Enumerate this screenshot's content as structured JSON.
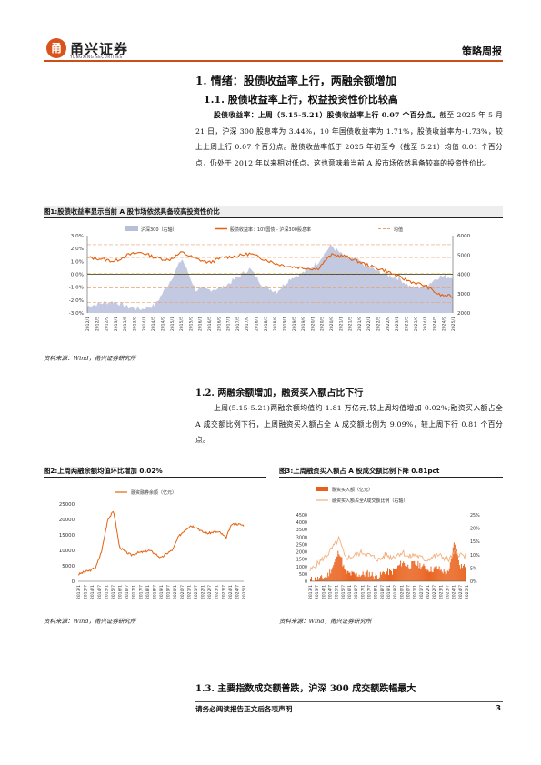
{
  "header": {
    "logo_mark": "甬",
    "logo_text": "甬兴证券",
    "logo_sub": "YONGXING SECURITIES",
    "doc_type": "策略周报"
  },
  "section1": {
    "title": "1. 情绪：股债收益率上行，两融余额增加",
    "sub1_title": "1.1. 股债收益率上行，权益投资性价比较高",
    "para1_bold": "股债收益率：上周（5.15-5.21）股债收益率上行 0.07 个百分点。",
    "para1_text": "截至 2025 年 5 月 21 日，沪深 300 股息率为 3.44%，10 年国债收益率为 1.71%，股债收益率为-1.73%，较上上周上行 0.07 个百分点。股债收益率低于 2025 年初至今（截至 5.21）均值 0.01 个百分点，仍处于 2012 年以来相对低点，这也意味着当前 A 股市场依然具备较高的投资性价比。",
    "sub2_title": "1.2. 两融余额增加，融资买入额占比下行",
    "para2_text": "上周(5.15-5.21)两融余额均值约 1.81 万亿元,较上周均值增加 0.02%;融资买入额占全 A 成交额比例下行，上周融资买入额占全 A 成交额比例为 9.09%，较上周下行 0.81 个百分点。",
    "sub3_title": "1.3. 主要指数成交额普跌，沪深 300 成交额跌幅最大"
  },
  "figure1": {
    "title": "图1:股债收益率显示当前 A 股市场依然具备较高投资性价比",
    "source": "资料来源：Wind，甬兴证券研究所"
  },
  "figure2": {
    "title": "图2:上周两融余额均值环比增加 0.02%",
    "source": "资料来源：Wind，甬兴证券研究所"
  },
  "figure3": {
    "title": "图3:上周融资买入额占 A 股成交额比例下降 0.81pct",
    "source": "资料来源：Wind，甬兴证券研究所"
  },
  "footer": {
    "disclaimer": "请务必阅读报告正文后各项声明",
    "page": "3"
  },
  "chart_data": [
    {
      "type": "line",
      "legend": [
        "沪深300（右轴）",
        "股债收益率：10Y国债 - 沪深300股息率",
        "均值"
      ],
      "yticks_left": [
        "3.0%",
        "2.0%",
        "1.0%",
        "0.0%",
        "-1.0%",
        "-2.0%",
        "-3.0%"
      ],
      "yticks_right": [
        "6000",
        "5000",
        "4000",
        "3000",
        "2000"
      ],
      "ylim_left": [
        -3.0,
        3.0
      ],
      "ylim_right": [
        2000,
        6000
      ],
      "reference_lines": [
        2.3,
        1.3,
        0.05,
        -1.05,
        -2.2
      ],
      "x": [
        "2012/1",
        "2012/7",
        "2013/1",
        "2013/7",
        "2014/1",
        "2014/7",
        "2015/1",
        "2015/7",
        "2016/1",
        "2016/7",
        "2017/1",
        "2017/7",
        "2018/1",
        "2018/7",
        "2019/1",
        "2019/7",
        "2020/1",
        "2020/7",
        "2021/1",
        "2021/7",
        "2022/1",
        "2022/7",
        "2023/1",
        "2023/7",
        "2024/1",
        "2024/7",
        "2025/1",
        "2025/5"
      ],
      "xticks": [
        "2012/1",
        "2012/5",
        "2012/9",
        "2013/1",
        "2013/5",
        "2013/9",
        "2014/1",
        "2014/5",
        "2014/9",
        "2015/1",
        "2015/5",
        "2015/9",
        "2016/1",
        "2016/5",
        "2016/9",
        "2017/1",
        "2017/5",
        "2017/9",
        "2018/1",
        "2018/5",
        "2018/9",
        "2019/1",
        "2019/5",
        "2019/9",
        "2020/1",
        "2020/5",
        "2020/9",
        "2021/1",
        "2021/5",
        "2021/9",
        "2022/1",
        "2022/5",
        "2022/9",
        "2023/1",
        "2023/5",
        "2023/9",
        "2024/1",
        "2024/5",
        "2024/9",
        "2025/1"
      ],
      "series": [
        {
          "name": "沪深300（右轴）",
          "axis": "right",
          "values": [
            2350,
            2500,
            2600,
            2300,
            2200,
            2400,
            3500,
            4800,
            3200,
            3200,
            3300,
            3800,
            4300,
            3400,
            3100,
            3800,
            4100,
            4600,
            5500,
            4900,
            4700,
            4300,
            4000,
            3800,
            3300,
            3400,
            3900,
            3850
          ]
        },
        {
          "name": "股债收益率：10Y国债 - 沪深300股息率",
          "axis": "left",
          "values": [
            1.3,
            1.2,
            1.0,
            1.5,
            1.7,
            1.3,
            1.1,
            1.7,
            1.2,
            0.9,
            1.3,
            1.4,
            1.6,
            1.2,
            0.8,
            0.6,
            0.5,
            0.4,
            1.5,
            1.4,
            1.0,
            0.6,
            0.3,
            -0.2,
            -0.6,
            -0.9,
            -1.6,
            -1.73
          ]
        }
      ]
    },
    {
      "type": "line",
      "legend": [
        "融资融券余额（亿元）"
      ],
      "yticks": [
        "25000",
        "20000",
        "15000",
        "10000",
        "5000",
        "0"
      ],
      "ylim": [
        0,
        25000
      ],
      "xticks": [
        "2013/1",
        "2013/7",
        "2014/1",
        "2014/7",
        "2015/1",
        "2015/7",
        "2016/1",
        "2016/7",
        "2017/1",
        "2017/7",
        "2018/1",
        "2018/7",
        "2019/1",
        "2019/7",
        "2020/1",
        "2020/7",
        "2021/1",
        "2021/7",
        "2022/1",
        "2022/7",
        "2023/1",
        "2023/7",
        "2024/1",
        "2024/7",
        "2025/1"
      ],
      "x": [
        "2013/1",
        "2013/7",
        "2014/1",
        "2014/7",
        "2015/1",
        "2015/5",
        "2015/6",
        "2015/9",
        "2016/1",
        "2016/7",
        "2017/1",
        "2017/7",
        "2018/1",
        "2018/7",
        "2019/1",
        "2019/7",
        "2020/1",
        "2020/7",
        "2021/1",
        "2021/7",
        "2022/1",
        "2022/7",
        "2023/1",
        "2023/7",
        "2024/1",
        "2024/7",
        "2024/10",
        "2025/1",
        "2025/5"
      ],
      "series": [
        {
          "name": "融资融券余额（亿元）",
          "values": [
            2200,
            3000,
            3500,
            4500,
            10000,
            20000,
            22700,
            11000,
            9500,
            8500,
            9200,
            9500,
            10000,
            9000,
            7500,
            9000,
            10200,
            14500,
            16500,
            18000,
            17500,
            16000,
            15500,
            16000,
            15800,
            14000,
            18500,
            18500,
            18100
          ]
        }
      ]
    },
    {
      "type": "bar",
      "legend": [
        "融资买入额（亿元）",
        "融资买入额占全A成交额比例（右轴）"
      ],
      "yticks_left": [
        "4500",
        "4000",
        "3500",
        "3000",
        "2500",
        "2000",
        "1500",
        "1000",
        "500",
        "0"
      ],
      "yticks_right": [
        "25%",
        "20%",
        "15%",
        "10%",
        "5%",
        "0%"
      ],
      "ylim_left": [
        0,
        4500
      ],
      "ylim_right": [
        0,
        25
      ],
      "xticks": [
        "2013/1",
        "2013/7",
        "2014/1",
        "2014/7",
        "2015/1",
        "2015/7",
        "2016/1",
        "2016/7",
        "2017/1",
        "2017/7",
        "2018/1",
        "2018/7",
        "2019/1",
        "2019/7",
        "2020/1",
        "2020/7",
        "2021/1",
        "2021/7",
        "2022/1",
        "2022/7",
        "2023/1",
        "2023/7",
        "2024/1",
        "2024/7",
        "2025/1"
      ],
      "x": [
        "2013/1",
        "2013/7",
        "2014/1",
        "2014/7",
        "2015/1",
        "2015/5",
        "2015/9",
        "2016/1",
        "2016/7",
        "2017/1",
        "2017/7",
        "2018/1",
        "2018/7",
        "2019/1",
        "2019/7",
        "2020/1",
        "2020/7",
        "2021/1",
        "2021/7",
        "2022/1",
        "2022/7",
        "2023/1",
        "2023/7",
        "2024/1",
        "2024/7",
        "2024/10",
        "2025/1",
        "2025/5"
      ],
      "series": [
        {
          "name": "融资买入额（亿元）",
          "axis": "left",
          "values": [
            100,
            150,
            200,
            400,
            1100,
            2100,
            600,
            500,
            450,
            450,
            550,
            400,
            350,
            700,
            600,
            900,
            1300,
            1000,
            1200,
            1100,
            900,
            800,
            900,
            700,
            500,
            2700,
            1100,
            1000
          ]
        },
        {
          "name": "融资买入额占全A成交额比例（右轴）",
          "axis": "right",
          "values": [
            4,
            6,
            8,
            10,
            13,
            16,
            9,
            9,
            10,
            11,
            10,
            9,
            8,
            10,
            9,
            10,
            11,
            9,
            10,
            9,
            8,
            9,
            10,
            9,
            8,
            11,
            10,
            9.09
          ]
        }
      ]
    }
  ]
}
